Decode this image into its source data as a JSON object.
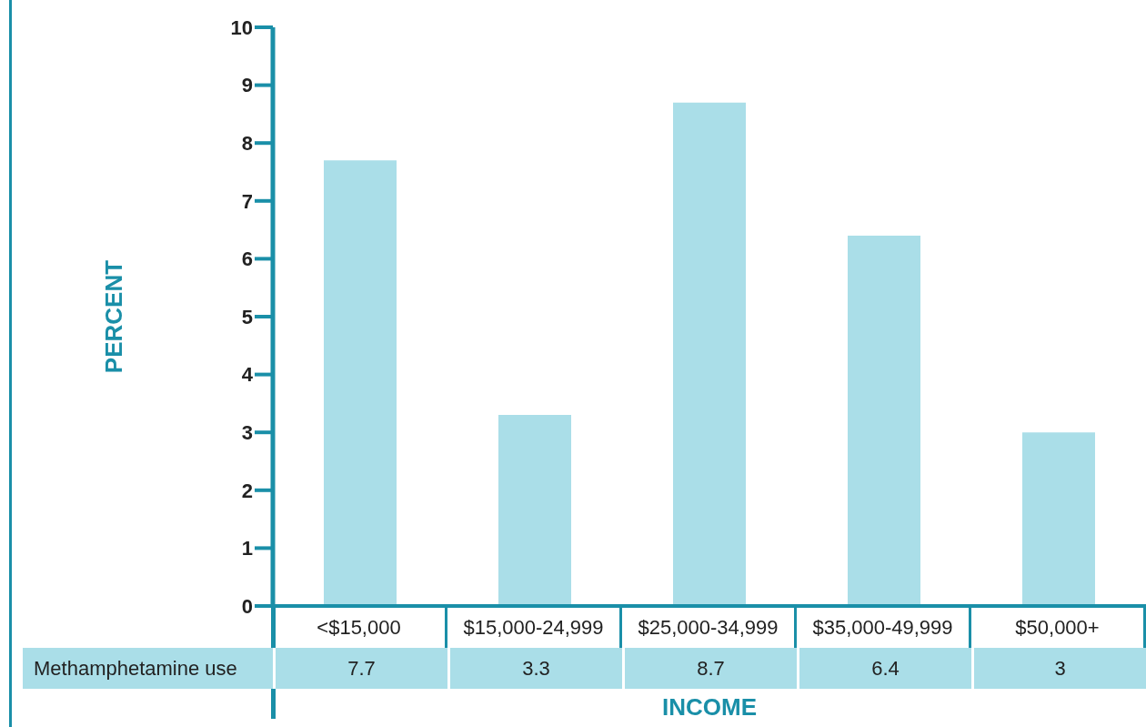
{
  "chart_data": {
    "type": "bar",
    "xlabel": "INCOME",
    "ylabel": "PERCENT",
    "categories": [
      "<$15,000",
      "$15,000-24,999",
      "$25,000-34,999",
      "$35,000-49,999",
      "$50,000+"
    ],
    "series": [
      {
        "name": "Methamphetamine use",
        "color": "#aadee8",
        "values": [
          7.7,
          3.3,
          8.7,
          6.4,
          3
        ]
      }
    ],
    "ylim": [
      0,
      10
    ],
    "yticks": [
      0,
      1,
      2,
      3,
      4,
      5,
      6,
      7,
      8,
      9,
      10
    ],
    "data_labels": true,
    "grid": false
  }
}
